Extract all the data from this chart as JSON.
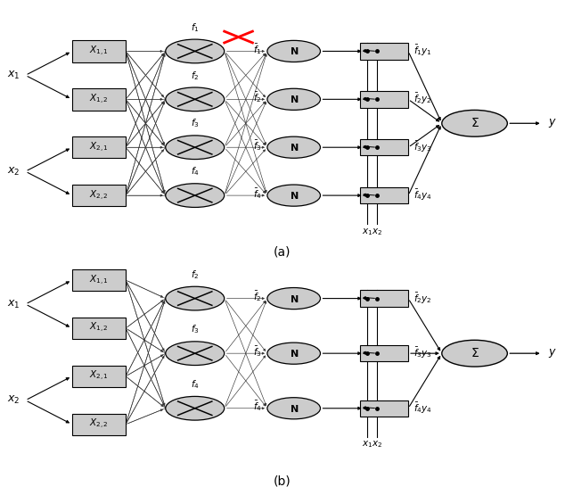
{
  "fig_width": 6.34,
  "fig_height": 5.46,
  "dpi": 100,
  "background": "#ffffff",
  "caption_a": "(a)",
  "caption_b": "(b)"
}
